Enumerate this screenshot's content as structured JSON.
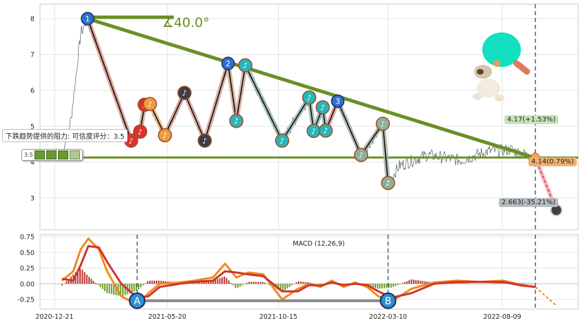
{
  "chart_data": [
    {
      "type": "line",
      "panel": "price",
      "xlabel": "",
      "ylabel": "",
      "ylim": [
        2.35,
        8.35
      ],
      "y_ticks": [
        3,
        4,
        5,
        6,
        7,
        8
      ],
      "x_ticks": [
        "2020-12-21",
        "2021-05-20",
        "2021-10-15",
        "2022-03-10",
        "2022-08-09"
      ],
      "x_tick_dates": [
        "2020-12-21",
        "2021-05-20",
        "2021-10-15",
        "2022-03-10",
        "2022-08-09"
      ],
      "grid": true,
      "angle_label": "∡40.0°",
      "resistance_label": "下跌趋势提供的阻力: 可信度评分：3.5",
      "score_label": "3.5",
      "support_level": 4.13,
      "trendline": [
        [
          "2021-02-03",
          8.0
        ],
        [
          "2022-09-22",
          4.12
        ]
      ],
      "zigzag": [
        [
          "2021-02-03",
          8.0
        ],
        [
          "2021-04-02",
          4.6
        ],
        [
          "2021-04-14",
          4.85
        ],
        [
          "2021-04-20",
          5.6
        ],
        [
          "2021-04-27",
          5.62
        ],
        [
          "2021-05-17",
          4.75
        ],
        [
          "2021-06-12",
          5.93
        ],
        [
          "2021-07-09",
          4.6
        ],
        [
          "2021-08-09",
          6.75
        ],
        [
          "2021-08-20",
          5.15
        ],
        [
          "2021-09-01",
          6.7
        ],
        [
          "2021-10-20",
          4.6
        ],
        [
          "2021-11-25",
          5.8
        ],
        [
          "2021-12-01",
          4.87
        ],
        [
          "2021-12-13",
          5.53
        ],
        [
          "2021-12-17",
          4.88
        ],
        [
          "2022-01-02",
          5.7
        ],
        [
          "2022-02-02",
          4.2
        ],
        [
          "2022-03-03",
          5.07
        ],
        [
          "2022-03-10",
          3.42
        ]
      ],
      "current_price_label": "4.14(0.79%)",
      "upper_target_label": "4.17(+1.53%)",
      "lower_target_label": "2.663(-35.21%)",
      "projection": [
        [
          "2022-09-22",
          4.12
        ],
        [
          "2022-10-20",
          2.663
        ]
      ],
      "markers": [
        {
          "label": "1",
          "date": "2021-02-03",
          "value": 8.0,
          "color": "#2f6fd0"
        },
        {
          "label": "2",
          "date": "2021-08-09",
          "value": 6.75,
          "color": "#2f6fd0"
        },
        {
          "label": "3",
          "date": "2022-01-02",
          "value": 5.7,
          "color": "#2f6fd0"
        }
      ],
      "note_markers": [
        {
          "date": "2021-04-02",
          "value": 4.6,
          "color": "#d9332b"
        },
        {
          "date": "2021-04-14",
          "value": 4.85,
          "color": "#d9332b"
        },
        {
          "date": "2021-04-20",
          "value": 5.6,
          "color": "#d9332b"
        },
        {
          "date": "2021-04-27",
          "value": 5.62,
          "color": "#f09a40"
        },
        {
          "date": "2021-05-17",
          "value": 4.75,
          "color": "#f09a40"
        },
        {
          "date": "2021-06-12",
          "value": 5.93,
          "color": "#3a3f47"
        },
        {
          "date": "2021-07-09",
          "value": 4.6,
          "color": "#3a3f47"
        },
        {
          "date": "2021-08-20",
          "value": 5.15,
          "color": "#2ab5b8"
        },
        {
          "date": "2021-09-01",
          "value": 6.7,
          "color": "#2ab5b8"
        },
        {
          "date": "2021-10-20",
          "value": 4.6,
          "color": "#2ab5b8"
        },
        {
          "date": "2021-11-25",
          "value": 5.8,
          "color": "#2ab5b8"
        },
        {
          "date": "2021-12-01",
          "value": 4.87,
          "color": "#2ab5b8"
        },
        {
          "date": "2021-12-13",
          "value": 5.53,
          "color": "#2ab5b8"
        },
        {
          "date": "2021-12-17",
          "value": 4.88,
          "color": "#2ab5b8"
        },
        {
          "date": "2022-02-02",
          "value": 4.2,
          "color": "#8fb09a"
        },
        {
          "date": "2022-03-03",
          "value": 5.07,
          "color": "#8fb09a"
        },
        {
          "date": "2022-03-10",
          "value": 3.42,
          "color": "#8fb09a"
        }
      ],
      "vline_date": "2022-09-22"
    },
    {
      "type": "line",
      "panel": "macd",
      "title": "MACD (12,26,9)",
      "ylim": [
        -0.38,
        0.82
      ],
      "y_ticks": [
        "0.75",
        "0.50",
        "0.25",
        "0.00",
        "-0.25"
      ],
      "y_tick_values": [
        0.75,
        0.5,
        0.25,
        0.0,
        -0.25
      ],
      "grid": true,
      "series": [
        {
          "role": "macd",
          "color": "#f08a1c",
          "x": [
            "2020-12-31",
            "2021-01-15",
            "2021-01-25",
            "2021-02-04",
            "2021-02-18",
            "2021-03-01",
            "2021-03-20",
            "2021-04-10",
            "2021-04-25",
            "2021-05-10",
            "2021-06-05",
            "2021-06-25",
            "2021-07-20",
            "2021-08-05",
            "2021-08-20",
            "2021-09-05",
            "2021-09-25",
            "2021-10-20",
            "2021-11-10",
            "2021-11-25",
            "2021-12-10",
            "2021-12-25",
            "2022-01-10",
            "2022-01-25",
            "2022-02-10",
            "2022-02-25",
            "2022-03-15",
            "2022-04-10",
            "2022-05-10",
            "2022-06-10",
            "2022-07-10",
            "2022-08-10",
            "2022-09-05",
            "2022-09-22"
          ],
          "values": [
            0.05,
            0.2,
            0.55,
            0.72,
            0.55,
            0.2,
            -0.2,
            -0.33,
            -0.15,
            0.0,
            0.02,
            0.05,
            0.1,
            0.32,
            0.1,
            0.18,
            0.15,
            -0.25,
            -0.08,
            0.0,
            -0.05,
            0.05,
            -0.05,
            0.02,
            -0.05,
            -0.2,
            -0.28,
            -0.08,
            0.02,
            0.05,
            0.03,
            0.05,
            -0.02,
            -0.05
          ]
        },
        {
          "role": "signal",
          "color": "#d0342c",
          "x": [
            "2020-12-31",
            "2021-01-15",
            "2021-01-25",
            "2021-02-04",
            "2021-02-18",
            "2021-03-01",
            "2021-03-20",
            "2021-04-10",
            "2021-04-25",
            "2021-05-10",
            "2021-06-05",
            "2021-06-25",
            "2021-07-20",
            "2021-08-05",
            "2021-08-20",
            "2021-09-05",
            "2021-09-25",
            "2021-10-20",
            "2021-11-10",
            "2021-11-25",
            "2021-12-10",
            "2021-12-25",
            "2022-01-10",
            "2022-01-25",
            "2022-02-10",
            "2022-02-25",
            "2022-03-15",
            "2022-04-10",
            "2022-05-10",
            "2022-06-10",
            "2022-07-10",
            "2022-08-10",
            "2022-09-05",
            "2022-09-22"
          ],
          "values": [
            0.08,
            0.05,
            0.3,
            0.6,
            0.58,
            0.35,
            0.0,
            -0.22,
            -0.2,
            -0.05,
            0.0,
            0.03,
            0.05,
            0.2,
            0.18,
            0.15,
            0.12,
            -0.12,
            -0.12,
            -0.02,
            -0.03,
            0.02,
            -0.02,
            0.0,
            -0.02,
            -0.12,
            -0.22,
            -0.15,
            0.0,
            0.03,
            0.03,
            0.03,
            -0.03,
            -0.05
          ]
        }
      ],
      "projection": [
        [
          "2022-09-22",
          -0.05
        ],
        [
          "2022-10-20",
          -0.35
        ]
      ],
      "points": [
        {
          "label": "A",
          "date": "2021-04-10",
          "value": -0.27
        },
        {
          "label": "B",
          "date": "2022-03-10",
          "value": -0.27
        }
      ],
      "vlines": [
        "2021-04-10",
        "2022-03-10",
        "2022-09-22"
      ]
    }
  ]
}
